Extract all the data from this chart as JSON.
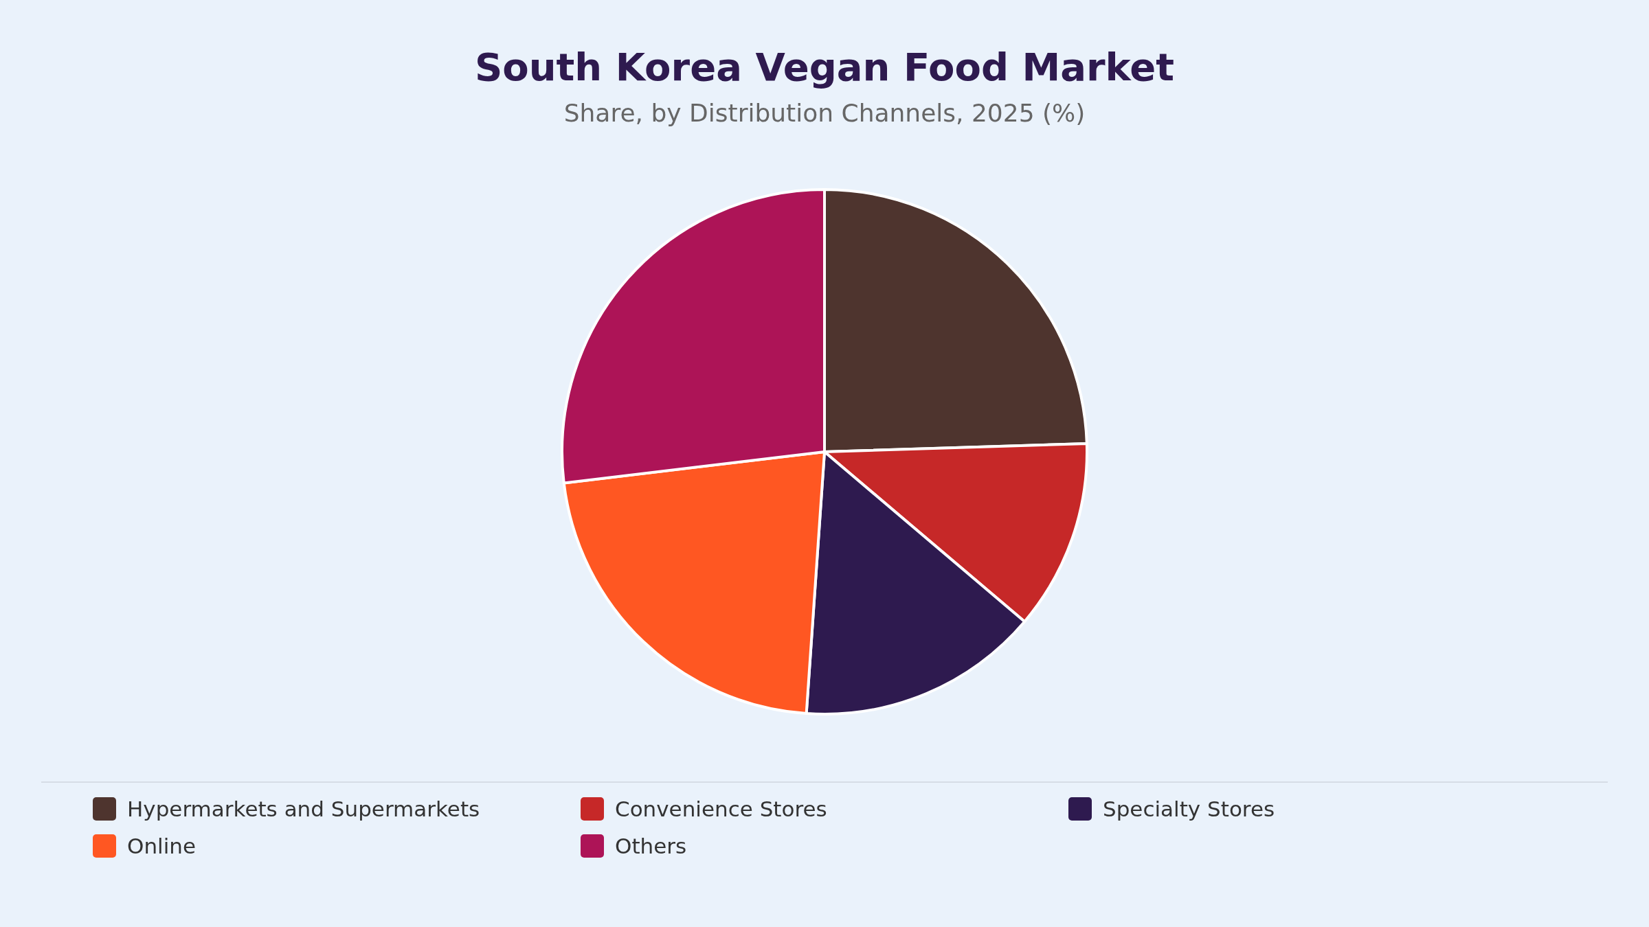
{
  "chart_data": {
    "type": "pie",
    "title": "South Korea Vegan Food Market",
    "subtitle": "Share, by Distribution Channels, 2025 (%)",
    "categories": [
      "Hypermarkets and Supermarkets",
      "Convenience Stores",
      "Specialty Stores",
      "Online",
      "Others"
    ],
    "values": [
      24.5,
      11.7,
      14.9,
      22.0,
      26.9
    ],
    "colors": [
      "#4e342e",
      "#c62828",
      "#2e1a4f",
      "#ff5722",
      "#ad1457"
    ],
    "legend": "bottom"
  }
}
